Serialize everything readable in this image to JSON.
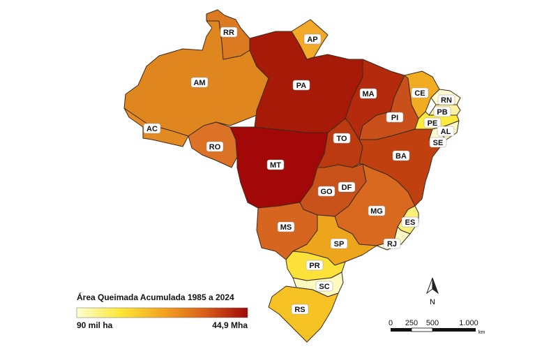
{
  "map_title": "Área Queimada Acumulada 1985 a 2024",
  "legend": {
    "min_label": "90 mil ha",
    "max_label": "44,9 Mha",
    "colors": [
      "#ffffd0",
      "#fee838",
      "#f3a521",
      "#d9601a",
      "#a30808"
    ]
  },
  "regions": [
    {
      "label": "AM",
      "color": "#e0861f"
    },
    {
      "label": "AC",
      "color": "#e28b25"
    },
    {
      "label": "RR",
      "color": "#dc7a22"
    },
    {
      "label": "AP",
      "color": "#f2a828"
    },
    {
      "label": "PA",
      "color": "#a81a08"
    },
    {
      "label": "RO",
      "color": "#db7226"
    },
    {
      "label": "MT",
      "color": "#a30808"
    },
    {
      "label": "MA",
      "color": "#b32a0d"
    },
    {
      "label": "PI",
      "color": "#c9501a"
    },
    {
      "label": "TO",
      "color": "#bb3a10"
    },
    {
      "label": "CE",
      "color": "#f2ac22"
    },
    {
      "label": "RN",
      "color": "#fffbd2"
    },
    {
      "label": "PB",
      "color": "#fdf0a0"
    },
    {
      "label": "PE",
      "color": "#feeb3e"
    },
    {
      "label": "AL",
      "color": "#fef9c2"
    },
    {
      "label": "SE",
      "color": "#fffad0"
    },
    {
      "label": "BA",
      "color": "#c0410f"
    },
    {
      "label": "GO",
      "color": "#c9521a"
    },
    {
      "label": "DF",
      "color": "#cf5e1f"
    },
    {
      "label": "MG",
      "color": "#d8691f"
    },
    {
      "label": "ES",
      "color": "#fbef7a"
    },
    {
      "label": "RJ",
      "color": "#fef8c6"
    },
    {
      "label": "MS",
      "color": "#d5651f"
    },
    {
      "label": "SP",
      "color": "#eda61c"
    },
    {
      "label": "PR",
      "color": "#fde23a"
    },
    {
      "label": "SC",
      "color": "#fefac0"
    },
    {
      "label": "RS",
      "color": "#f6c224"
    }
  ],
  "scale_bar": {
    "ticks": [
      "0",
      "250",
      "500",
      "1.000"
    ],
    "unit": "km"
  },
  "north_label": "N"
}
